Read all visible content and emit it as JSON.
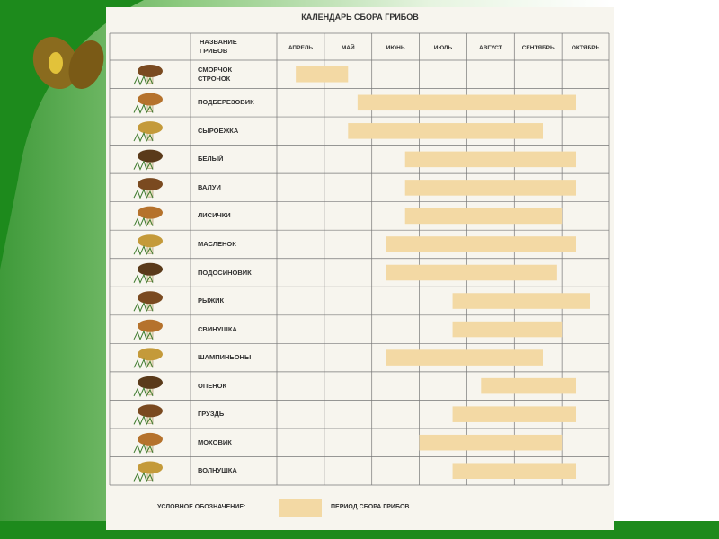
{
  "title": "КАЛЕНДАРЬ СБОРА ГРИБОВ",
  "header": "НАЗВАНИЕ ГРИБОВ",
  "months": [
    "АПРЕЛЬ",
    "МАЙ",
    "ИЮНЬ",
    "ИЮЛЬ",
    "АВГУСТ",
    "СЕНТЯБРЬ",
    "ОКТЯБРЬ"
  ],
  "bar_color": "#f3d9a4",
  "rows": [
    {
      "name": "СМОРЧОК СТРОЧОК",
      "start": 0.4,
      "end": 1.5
    },
    {
      "name": "ПОДБЕРЕЗОВИК",
      "start": 1.7,
      "end": 6.3
    },
    {
      "name": "СЫРОЕЖКА",
      "start": 1.5,
      "end": 5.6
    },
    {
      "name": "БЕЛЫЙ",
      "start": 2.7,
      "end": 6.3
    },
    {
      "name": "ВАЛУИ",
      "start": 2.7,
      "end": 6.3
    },
    {
      "name": "ЛИСИЧКИ",
      "start": 2.7,
      "end": 6.0
    },
    {
      "name": "МАСЛЕНОК",
      "start": 2.3,
      "end": 6.3
    },
    {
      "name": "ПОДОСИНОВИК",
      "start": 2.3,
      "end": 5.9
    },
    {
      "name": "РЫЖИК",
      "start": 3.7,
      "end": 6.6
    },
    {
      "name": "СВИНУШКА",
      "start": 3.7,
      "end": 6.0
    },
    {
      "name": "ШАМПИНЬОНЫ",
      "start": 2.3,
      "end": 5.6
    },
    {
      "name": "ОПЕНОК",
      "start": 4.3,
      "end": 6.3
    },
    {
      "name": "ГРУЗДЬ",
      "start": 3.7,
      "end": 6.3
    },
    {
      "name": "МОХОВИК",
      "start": 3.0,
      "end": 6.0
    },
    {
      "name": "ВОЛНУШКА",
      "start": 3.7,
      "end": 6.3
    }
  ],
  "legend": {
    "label": "УСЛОВНОЕ ОБОЗНАЧЕНИЕ:",
    "text": "ПЕРИОД СБОРА ГРИБОВ"
  }
}
